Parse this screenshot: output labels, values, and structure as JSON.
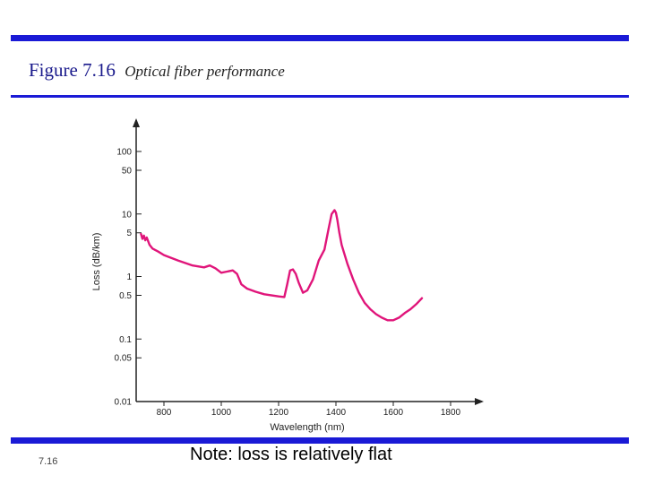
{
  "slide": {
    "figure_number": "Figure 7.16",
    "caption": "Optical fiber performance",
    "slide_number": "7.16",
    "footnote": "Note: loss is relatively flat"
  },
  "colors": {
    "rule": "#1a1ad6",
    "curve": "#e0157a",
    "axis": "#222222"
  },
  "chart_data": {
    "type": "line",
    "title": "",
    "xlabel": "Wavelength (nm)",
    "ylabel": "Loss (dB/km)",
    "y_scale": "log",
    "xlim": [
      700,
      1820
    ],
    "ylim": [
      0.01,
      200
    ],
    "grid": false,
    "legend": "none",
    "x_ticks": [
      800,
      1000,
      1200,
      1400,
      1600,
      1800
    ],
    "x_tick_labels": [
      "800",
      "1000",
      "1200",
      "1400",
      "1600",
      "1800"
    ],
    "y_ticks": [
      100,
      50,
      10,
      5,
      1,
      0.5,
      0.1,
      0.05,
      0.01
    ],
    "y_tick_labels": [
      "100",
      "50",
      "10",
      "5",
      "1",
      "0.5",
      "0.1",
      "0.05",
      "0.01"
    ],
    "series": [
      {
        "x": [
          720,
          725,
          730,
          735,
          740,
          750,
          760,
          780,
          800,
          850,
          900,
          940,
          960,
          980,
          1000,
          1020,
          1040,
          1055,
          1070,
          1090,
          1120,
          1150,
          1200,
          1220,
          1230,
          1240,
          1250,
          1260,
          1270,
          1285,
          1300,
          1320,
          1340,
          1360,
          1375,
          1385,
          1395,
          1400,
          1405,
          1412,
          1420,
          1440,
          1460,
          1480,
          1500,
          1520,
          1540,
          1560,
          1580,
          1600,
          1620,
          1640,
          1660,
          1680,
          1700
        ],
        "y": [
          4.8,
          4.0,
          4.5,
          3.8,
          4.2,
          3.2,
          2.8,
          2.5,
          2.2,
          1.8,
          1.5,
          1.4,
          1.5,
          1.35,
          1.15,
          1.2,
          1.25,
          1.1,
          0.75,
          0.64,
          0.57,
          0.52,
          0.48,
          0.47,
          0.75,
          1.25,
          1.3,
          1.1,
          0.8,
          0.55,
          0.6,
          0.9,
          1.8,
          2.7,
          6.0,
          10.0,
          11.5,
          10.5,
          8.0,
          5.0,
          3.2,
          1.6,
          0.9,
          0.55,
          0.38,
          0.3,
          0.25,
          0.22,
          0.2,
          0.2,
          0.22,
          0.26,
          0.3,
          0.36,
          0.45
        ]
      }
    ]
  }
}
